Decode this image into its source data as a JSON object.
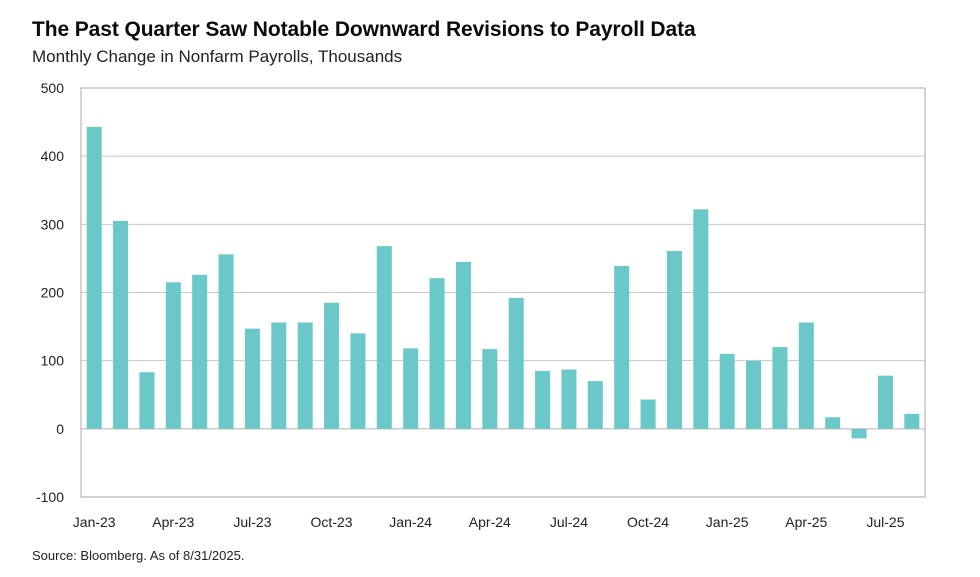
{
  "header": {
    "title": "The Past Quarter Saw Notable Downward Revisions to Payroll Data",
    "subtitle": "Monthly Change in Nonfarm Payrolls, Thousands"
  },
  "footer": {
    "source": "Source: Bloomberg. As of 8/31/2025."
  },
  "colors": {
    "bar": "#6ac9c8",
    "grid": "#c8c8c8",
    "axis": "#a8a8a8"
  },
  "chart_data": {
    "type": "bar",
    "title": "The Past Quarter Saw Notable Downward Revisions to Payroll Data",
    "subtitle": "Monthly Change in Nonfarm Payrolls, Thousands",
    "xlabel": "",
    "ylabel": "",
    "ylim": [
      -100,
      500
    ],
    "yticks": [
      500,
      400,
      300,
      200,
      100,
      0,
      -100
    ],
    "grid": true,
    "legend": "none",
    "categories": [
      "Jan-23",
      "Feb-23",
      "Mar-23",
      "Apr-23",
      "May-23",
      "Jun-23",
      "Jul-23",
      "Aug-23",
      "Sep-23",
      "Oct-23",
      "Nov-23",
      "Dec-23",
      "Jan-24",
      "Feb-24",
      "Mar-24",
      "Apr-24",
      "May-24",
      "Jun-24",
      "Jul-24",
      "Aug-24",
      "Sep-24",
      "Oct-24",
      "Nov-24",
      "Dec-24",
      "Jan-25",
      "Feb-25",
      "Mar-25",
      "Apr-25",
      "May-25",
      "Jun-25",
      "Jul-25",
      "Aug-25"
    ],
    "xtick_labels": [
      "Jan-23",
      "Apr-23",
      "Jul-23",
      "Oct-23",
      "Jan-24",
      "Apr-24",
      "Jul-24",
      "Oct-24",
      "Jan-25",
      "Apr-25",
      "Jul-25"
    ],
    "values": [
      443,
      305,
      83,
      215,
      226,
      256,
      147,
      156,
      156,
      185,
      140,
      268,
      118,
      221,
      245,
      117,
      192,
      85,
      87,
      70,
      239,
      43,
      261,
      322,
      110,
      100,
      120,
      156,
      17,
      -14,
      78,
      22
    ]
  }
}
